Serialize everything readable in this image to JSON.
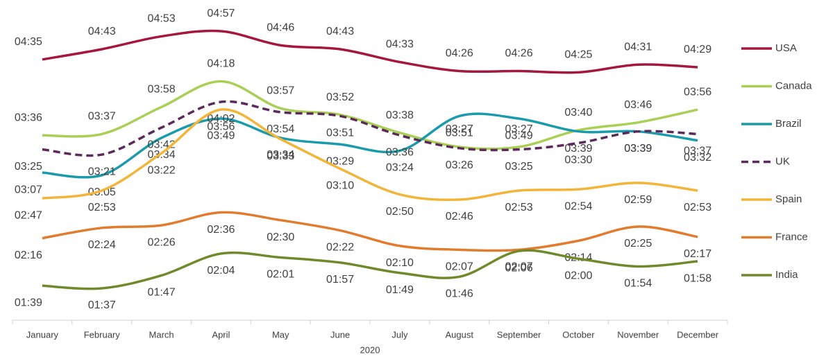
{
  "chart_data": {
    "type": "line",
    "x_label": "2020",
    "categories": [
      "January",
      "February",
      "March",
      "April",
      "May",
      "June",
      "July",
      "August",
      "September",
      "October",
      "November",
      "December"
    ],
    "series": [
      {
        "name": "USA",
        "color": "#a6173d",
        "values": [
          275,
          283,
          293,
          297,
          286,
          283,
          273,
          266,
          266,
          265,
          271,
          269
        ],
        "value_labels": [
          "04:35",
          "04:43",
          "04:53",
          "04:57",
          "04:46",
          "04:43",
          "04:33",
          "04:26",
          "04:26",
          "04:25",
          "04:31",
          "04:29"
        ]
      },
      {
        "name": "Canada",
        "color": "#a9cf54",
        "values": [
          216,
          217,
          238,
          258,
          237,
          232,
          218,
          207,
          207,
          220,
          226,
          236
        ],
        "value_labels": [
          "03:36",
          "03:37",
          "03:58",
          "04:18",
          "03:57",
          "03:52",
          "03:38",
          "03:27",
          "03:27",
          "03:40",
          "03:46",
          "03:56"
        ]
      },
      {
        "name": "Brazil",
        "color": "#1a9bab",
        "values": [
          187,
          185,
          214,
          229,
          214,
          209,
          204,
          231,
          229,
          219,
          219,
          212
        ],
        "value_labels": [
          "03:07",
          "03:05",
          "03:34",
          "03:49",
          "03:34",
          "03:29",
          "03:24",
          "03:51",
          "03:49",
          "03:39",
          "03:39",
          "03:32"
        ]
      },
      {
        "name": "UK",
        "color": "#5b2a5a",
        "line_style": "dashed",
        "values": [
          205,
          201,
          222,
          242,
          234,
          231,
          216,
          206,
          205,
          210,
          219,
          217
        ],
        "value_labels": [
          "03:25",
          "03:21",
          "03:42",
          "04:02",
          "03:54",
          "03:51",
          "03:36",
          "03:26",
          "03:25",
          "03:30",
          "03:39",
          "03:37"
        ]
      },
      {
        "name": "Spain",
        "color": "#f2b53a",
        "values": [
          167,
          173,
          202,
          236,
          213,
          190,
          170,
          166,
          173,
          174,
          179,
          173
        ],
        "value_labels": [
          "02:47",
          "02:53",
          "03:22",
          "03:56",
          "03:33",
          "03:10",
          "02:50",
          "02:46",
          "02:53",
          "02:54",
          "02:59",
          "02:53"
        ]
      },
      {
        "name": "France",
        "color": "#e27b2e",
        "values": [
          136,
          144,
          146,
          156,
          150,
          142,
          130,
          127,
          127,
          134,
          145,
          137
        ],
        "value_labels": [
          "02:16",
          "02:24",
          "02:26",
          "02:36",
          "02:30",
          "02:22",
          "02:10",
          "02:07",
          "02:07",
          "02:14",
          "02:25",
          "02:17"
        ]
      },
      {
        "name": "India",
        "color": "#6f8a2a",
        "values": [
          99,
          97,
          107,
          124,
          121,
          117,
          109,
          106,
          126,
          120,
          114,
          118
        ],
        "value_labels": [
          "01:39",
          "01:37",
          "01:47",
          "02:04",
          "02:01",
          "01:57",
          "01:49",
          "01:46",
          "02:06",
          "02:00",
          "01:54",
          "01:58"
        ]
      }
    ]
  }
}
